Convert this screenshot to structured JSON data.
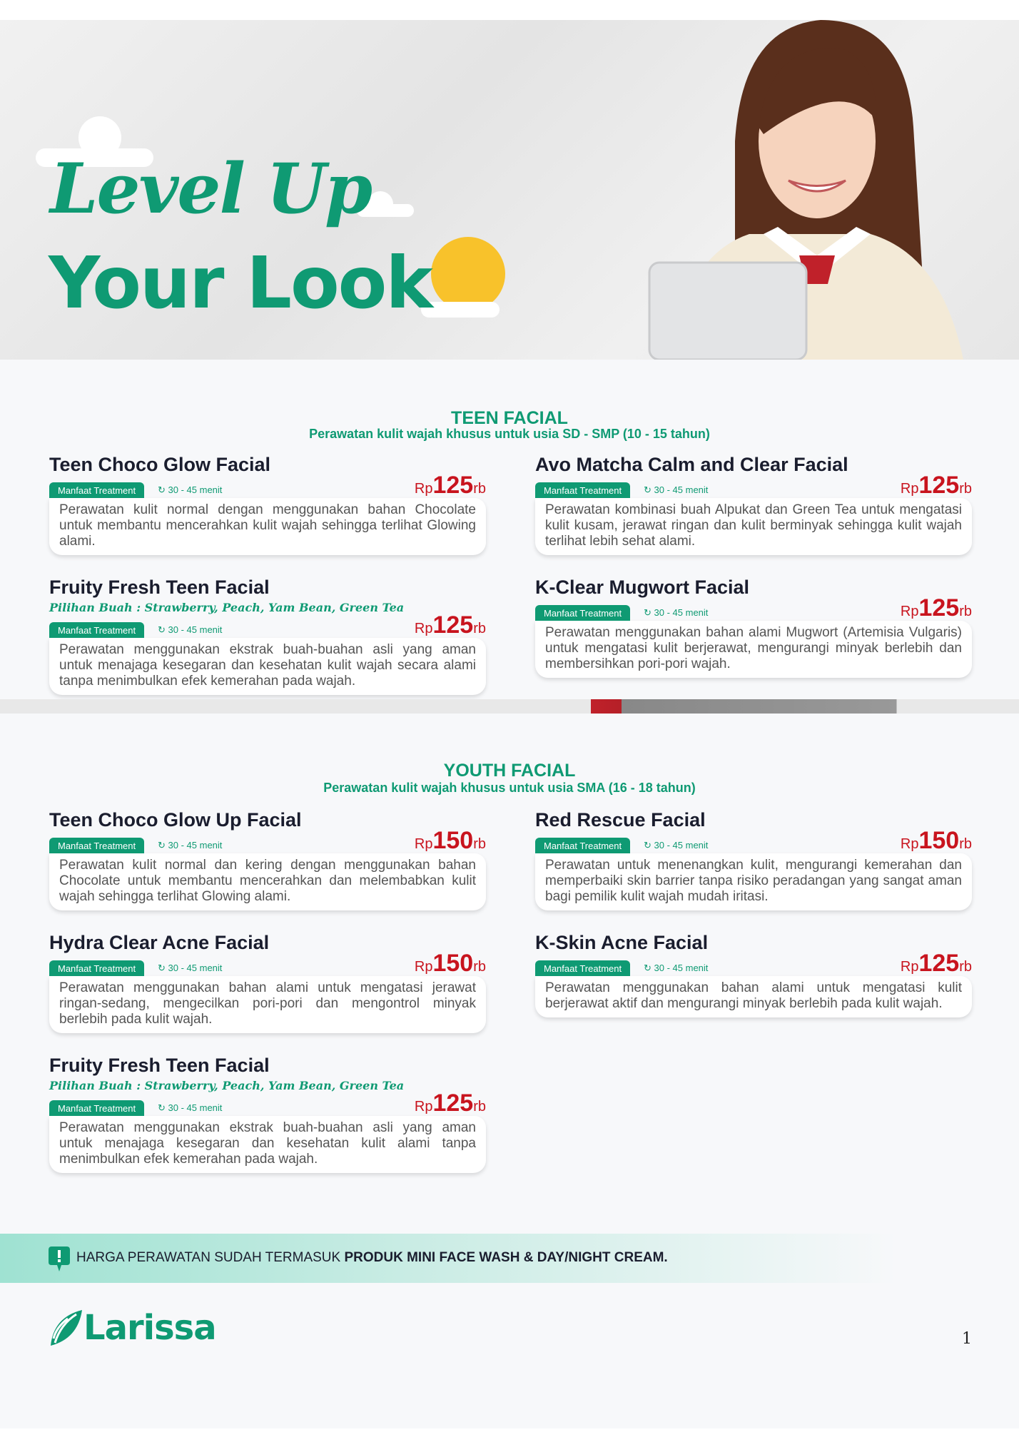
{
  "hero": {
    "line1": "Level Up",
    "line2": "Your Look"
  },
  "sections": [
    {
      "title": "TEEN FACIAL",
      "subtitle": "Perawatan kulit wajah khusus untuk usia SD - SMP (10 - 15 tahun)",
      "items": [
        {
          "name": "Teen Choco Glow Facial",
          "tag": "Manfaat Treatment",
          "duration": "30 - 45 menit",
          "currency": "Rp",
          "price": "125",
          "unit": "rb",
          "description": "Perawatan kulit normal dengan menggunakan bahan Chocolate untuk membantu mencerahkan kulit wajah sehingga terlihat Glowing alami."
        },
        {
          "name": "Avo Matcha Calm and Clear Facial",
          "tag": "Manfaat Treatment",
          "duration": "30 - 45 menit",
          "currency": "Rp",
          "price": "125",
          "unit": "rb",
          "description": "Perawatan kombinasi buah Alpukat dan Green Tea untuk mengatasi kulit kusam, jerawat ringan dan kulit berminyak sehingga kulit wajah terlihat lebih sehat alami."
        },
        {
          "name": "Fruity Fresh Teen Facial",
          "subtitle": "Pilihan Buah : Strawberry, Peach, Yam Bean, Green Tea",
          "tag": "Manfaat Treatment",
          "duration": "30 - 45 menit",
          "currency": "Rp",
          "price": "125",
          "unit": "rb",
          "description": "Perawatan menggunakan ekstrak buah-buahan asli yang aman untuk menajaga kesegaran dan kesehatan kulit wajah secara alami tanpa menimbulkan efek kemerahan pada wajah."
        },
        {
          "name": "K-Clear Mugwort Facial",
          "tag": "Manfaat Treatment",
          "duration": "30 - 45 menit",
          "currency": "Rp",
          "price": "125",
          "unit": "rb",
          "description": "Perawatan menggunakan bahan alami Mugwort (Artemisia Vulgaris) untuk mengatasi kulit berjerawat, mengurangi minyak berlebih dan membersihkan pori-pori wajah."
        }
      ]
    },
    {
      "title": "YOUTH FACIAL",
      "subtitle": "Perawatan kulit wajah khusus untuk usia SMA (16 - 18 tahun)",
      "items": [
        {
          "name": "Teen Choco Glow Up Facial",
          "tag": "Manfaat Treatment",
          "duration": "30 - 45 menit",
          "currency": "Rp",
          "price": "150",
          "unit": "rb",
          "description": "Perawatan kulit normal dan kering dengan menggunakan bahan Chocolate untuk membantu mencerahkan dan melembabkan kulit wajah sehingga terlihat Glowing alami."
        },
        {
          "name": "Red Rescue Facial",
          "tag": "Manfaat Treatment",
          "duration": "30 - 45 menit",
          "currency": "Rp",
          "price": "150",
          "unit": "rb",
          "description": "Perawatan untuk menenangkan kulit, mengurangi kemerahan dan memperbaiki skin barrier tanpa risiko peradangan yang sangat aman bagi pemilik kulit wajah mudah iritasi."
        },
        {
          "name": "Hydra Clear Acne Facial",
          "tag": "Manfaat Treatment",
          "duration": "30 - 45 menit",
          "currency": "Rp",
          "price": "150",
          "unit": "rb",
          "description": "Perawatan menggunakan bahan alami untuk mengatasi jerawat ringan-sedang, mengecilkan pori-pori dan mengontrol minyak berlebih pada kulit wajah."
        },
        {
          "name": "K-Skin Acne Facial",
          "tag": "Manfaat Treatment",
          "duration": "30 - 45 menit",
          "currency": "Rp",
          "price": "125",
          "unit": "rb",
          "description": "Perawatan menggunakan bahan alami untuk mengatasi kulit berjerawat aktif dan mengurangi minyak berlebih pada kulit wajah."
        },
        {
          "name": "Fruity Fresh Teen Facial",
          "subtitle": "Pilihan Buah : Strawberry, Peach, Yam Bean, Green Tea",
          "tag": "Manfaat Treatment",
          "duration": "30 - 45 menit",
          "currency": "Rp",
          "price": "125",
          "unit": "rb",
          "description": "Perawatan menggunakan ekstrak buah-buahan asli yang aman untuk menajaga kesegaran dan kesehatan kulit alami tanpa menimbulkan efek kemerahan pada wajah."
        }
      ]
    }
  ],
  "notice": {
    "icon": "exclamation-bubble-icon",
    "text_regular": "HARGA PERAWATAN SUDAH TERMASUK ",
    "text_bold": "PRODUK MINI FACE WASH & DAY/NIGHT CREAM."
  },
  "brand": {
    "name": "Larissa",
    "color": "#0f9a73"
  },
  "colors": {
    "accent": "#0f9a73",
    "price": "#c8141e",
    "sun": "#f8c22b"
  },
  "page_number": "1"
}
